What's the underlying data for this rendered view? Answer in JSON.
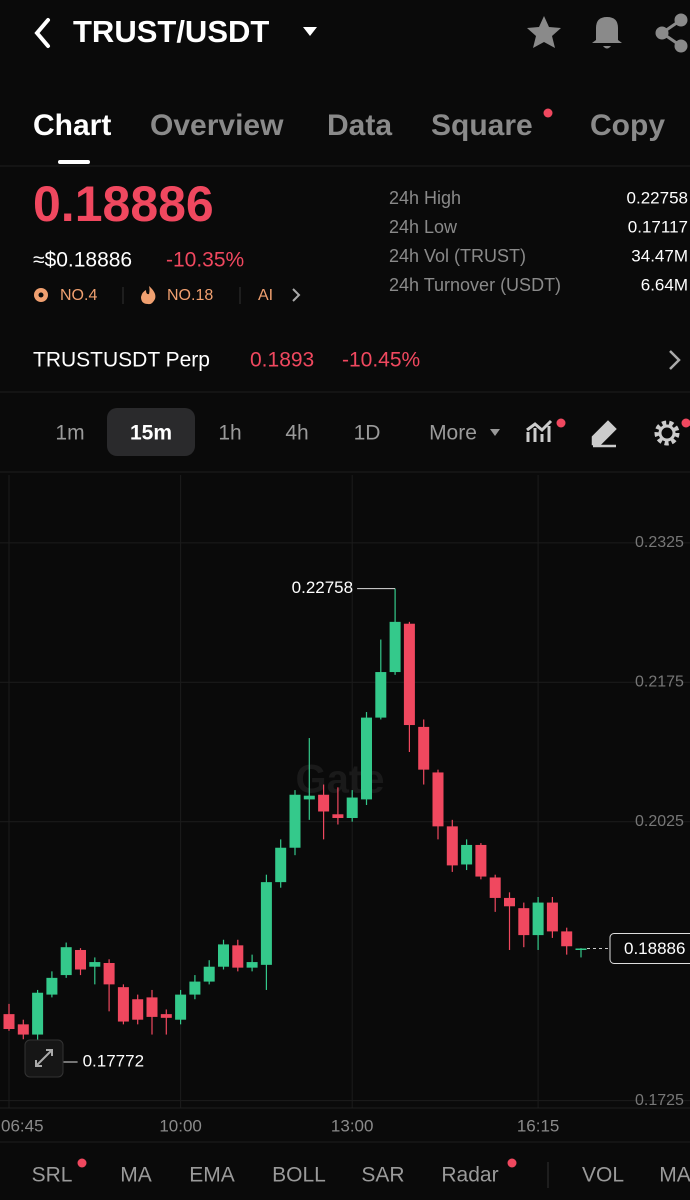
{
  "header": {
    "pair": "TRUST/USDT"
  },
  "tabs": [
    "Chart",
    "Overview",
    "Data",
    "Square",
    "Copy"
  ],
  "ticker": {
    "price": "0.18886",
    "usd_price": "≈$0.18886",
    "change": "-10.35%",
    "badges": [
      "NO.4",
      "NO.18",
      "AI"
    ],
    "stats": [
      {
        "label": "24h High",
        "value": "0.22758"
      },
      {
        "label": "24h Low",
        "value": "0.17117"
      },
      {
        "label": "24h Vol (TRUST)",
        "value": "34.47M"
      },
      {
        "label": "24h Turnover (USDT)",
        "value": "6.64M"
      }
    ]
  },
  "perp": {
    "name": "TRUSTUSDT Perp",
    "price": "0.1893",
    "change": "-10.45%"
  },
  "intervals": [
    "1m",
    "15m",
    "1h",
    "4h",
    "1D",
    "More"
  ],
  "chart": {
    "type": "candlestick",
    "watermark": "Gate",
    "up_color": "#34c98b",
    "down_color": "#f0485f",
    "categories": [
      "06:45",
      null,
      null,
      null,
      null,
      null,
      null,
      null,
      null,
      null,
      null,
      null,
      "10:00",
      null,
      null,
      null,
      null,
      null,
      null,
      null,
      null,
      null,
      null,
      null,
      "13:00",
      null,
      null,
      null,
      null,
      null,
      null,
      null,
      null,
      null,
      null,
      null,
      null,
      "16:15",
      null,
      null,
      null
    ],
    "open": [
      0.1818,
      0.1807,
      0.1796,
      0.1839,
      0.186,
      0.1887,
      0.1869,
      0.1873,
      0.1847,
      0.1834,
      0.1836,
      0.1818,
      0.1812,
      0.1839,
      0.1853,
      0.1869,
      0.1892,
      0.1868,
      0.1871,
      0.196,
      0.1997,
      0.2049,
      0.2054,
      0.2033,
      0.2029,
      0.2049,
      0.2137,
      0.2186,
      0.2238,
      0.2127,
      0.2078,
      0.202,
      0.1979,
      0.2,
      0.1965,
      0.1943,
      0.1932,
      0.1903,
      0.1938,
      0.1907,
      0.1887
    ],
    "high": [
      0.1829,
      0.1812,
      0.1844,
      0.1864,
      0.1895,
      0.1889,
      0.1879,
      0.1877,
      0.185,
      0.1839,
      0.1844,
      0.1823,
      0.1844,
      0.186,
      0.1876,
      0.1898,
      0.1898,
      0.1882,
      0.1968,
      0.2006,
      0.2059,
      0.2115,
      0.2065,
      0.2062,
      0.2059,
      0.2143,
      0.2221,
      0.22758,
      0.224,
      0.2135,
      0.2081,
      0.2027,
      0.2006,
      0.2002,
      0.1968,
      0.1949,
      0.1938,
      0.1944,
      0.1944,
      0.1911,
      0.1889
    ],
    "low": [
      0.18,
      0.1791,
      0.17772,
      0.1836,
      0.1857,
      0.186,
      0.185,
      0.1821,
      0.1807,
      0.1807,
      0.1796,
      0.1796,
      0.1807,
      0.1834,
      0.185,
      0.1866,
      0.1864,
      0.1864,
      0.1844,
      0.1954,
      0.1989,
      0.2027,
      0.2006,
      0.2022,
      0.2025,
      0.2043,
      0.2135,
      0.2183,
      0.21,
      0.2065,
      0.2006,
      0.1971,
      0.1973,
      0.1963,
      0.1928,
      0.1887,
      0.189,
      0.1887,
      0.19,
      0.1882,
      0.1879
    ],
    "close": [
      0.1802,
      0.1796,
      0.1841,
      0.1857,
      0.189,
      0.1866,
      0.1874,
      0.185,
      0.181,
      0.1812,
      0.1815,
      0.1814,
      0.1839,
      0.1853,
      0.1869,
      0.1893,
      0.1868,
      0.1874,
      0.196,
      0.1997,
      0.2054,
      0.2053,
      0.2036,
      0.2029,
      0.2051,
      0.2137,
      0.2186,
      0.224,
      0.2129,
      0.2081,
      0.202,
      0.1978,
      0.2,
      0.1966,
      0.1943,
      0.1934,
      0.1903,
      0.1938,
      0.1907,
      0.1891,
      0.18886
    ],
    "ylim": [
      0.1717,
      0.2398
    ],
    "yticks": [
      0.2325,
      0.2175,
      0.2025,
      0.1725
    ],
    "max_price": "0.22758",
    "min_price": "0.17772",
    "last_price": "0.18886"
  },
  "indicators": [
    "SRL",
    "MA",
    "EMA",
    "BOLL",
    "SAR",
    "Radar",
    "VOL",
    "MA"
  ]
}
